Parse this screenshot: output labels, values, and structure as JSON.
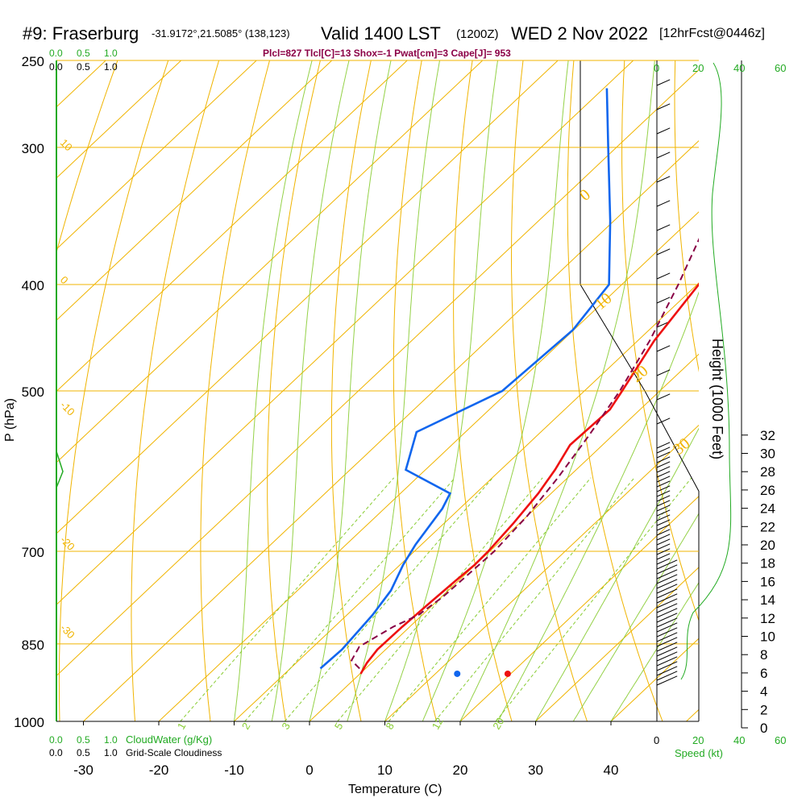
{
  "header": {
    "station": "#9: Fraserburg",
    "coords": "-31.9172°,21.5085° (138,123)",
    "valid": "Valid 1400 LST",
    "utc": "(1200Z)",
    "date": "WED 2 Nov 2022",
    "forecast": "[12hrFcst@0446z]",
    "parameters": "Plcl=827 Tlcl[C]=13 Shox=-1 Pwat[cm]=3 Cape[J]= 953"
  },
  "top_scales": {
    "cloudwater_ticks": [
      "0.0",
      "0.5",
      "1.0"
    ],
    "cloudiness_ticks": [
      "0.0",
      "0.5",
      "1.0"
    ],
    "speed_ticks": [
      "0",
      "20",
      "40",
      "60"
    ]
  },
  "bottom_scales": {
    "cloudwater_ticks": [
      "0.0",
      "0.5",
      "1.0"
    ],
    "cloudwater_label": "CloudWater (g/Kg)",
    "cloudiness_ticks": [
      "0.0",
      "0.5",
      "1.0"
    ],
    "cloudiness_label": "Grid-Scale Cloudiness",
    "speed_ticks": [
      "0",
      "20",
      "40",
      "60"
    ],
    "speed_label": "Speed (kt)"
  },
  "colors": {
    "temperature": "#ee1111",
    "dewpoint": "#1166ee",
    "parcel": "#880044",
    "isobar_isotherm": "#f0b400",
    "mixing_ratio": "#88cc33",
    "cloud": "#22aa22"
  },
  "chart_data": {
    "type": "line",
    "title": "",
    "xlabel": "Temperature (C)",
    "ylabel": "P (hPa)",
    "y2label": "Height (1000 Feet)",
    "x_ticks": [
      "-30",
      "-20",
      "-10",
      "0",
      "10",
      "20",
      "30",
      "40"
    ],
    "xlim": [
      -34,
      36
    ],
    "p_ticks": [
      "250",
      "300",
      "400",
      "500",
      "700",
      "850",
      "1000"
    ],
    "p_values": [
      250,
      300,
      400,
      500,
      700,
      850,
      1000
    ],
    "ylim": [
      1000,
      250
    ],
    "y_scale": "log",
    "height_ticks": [
      "0",
      "2",
      "4",
      "6",
      "8",
      "10",
      "12",
      "14",
      "16",
      "18",
      "20",
      "22",
      "24",
      "26",
      "28",
      "30",
      "32"
    ],
    "skewed_isotherm_labels": [
      "10",
      "0",
      "-10",
      "-20",
      "-30"
    ],
    "dry_adiabat_labels": [
      "0",
      "10",
      "20",
      "30"
    ],
    "mixing_ratio_labels": [
      "1",
      "2",
      "3",
      "5",
      "8",
      "12",
      "20"
    ],
    "series": [
      {
        "key": "temperature",
        "points": [
          [
            0.1,
            905
          ],
          [
            -0.6,
            885
          ],
          [
            -1.1,
            860
          ],
          [
            -1.0,
            820
          ],
          [
            -0.7,
            780
          ],
          [
            -0.4,
            745
          ],
          [
            -0.1,
            720
          ],
          [
            -0.2,
            700
          ],
          [
            -0.8,
            660
          ],
          [
            -1.7,
            620
          ],
          [
            -2.8,
            590
          ],
          [
            -4.3,
            560
          ],
          [
            -4.0,
            520
          ],
          [
            -5.0,
            500
          ],
          [
            -7.8,
            450
          ],
          [
            -9.8,
            400
          ],
          [
            -12.9,
            350
          ],
          [
            -18.3,
            300
          ],
          [
            -22.6,
            265
          ]
        ]
      },
      {
        "key": "dewpoint",
        "points": [
          [
            -6.0,
            895
          ],
          [
            -5.8,
            860
          ],
          [
            -6.6,
            800
          ],
          [
            -7.6,
            760
          ],
          [
            -9.6,
            720
          ],
          [
            -10.8,
            690
          ],
          [
            -12.3,
            640
          ],
          [
            -13.4,
            620
          ],
          [
            -22.6,
            590
          ],
          [
            -26.5,
            545
          ],
          [
            -20.9,
            500
          ],
          [
            -20.1,
            440
          ],
          [
            -21.7,
            400
          ],
          [
            -30.5,
            350
          ],
          [
            -41.1,
            300
          ],
          [
            -49.6,
            265
          ]
        ]
      },
      {
        "key": "parcel",
        "points": [
          [
            -0.8,
            895
          ],
          [
            -3.0,
            880
          ],
          [
            -3.9,
            855
          ],
          [
            -2.2,
            820
          ],
          [
            -0.5,
            800
          ],
          [
            0.2,
            770
          ],
          [
            0.6,
            700
          ],
          [
            0.0,
            650
          ],
          [
            -1.3,
            600
          ],
          [
            -3.1,
            550
          ],
          [
            -5.3,
            500
          ],
          [
            -8.4,
            450
          ],
          [
            -12.5,
            400
          ],
          [
            -17.6,
            350
          ],
          [
            -23.8,
            300
          ],
          [
            -29.5,
            262
          ]
        ]
      }
    ],
    "surface_markers": [
      {
        "key": "temperature",
        "x": 26.3,
        "p": 905
      },
      {
        "key": "dewpoint",
        "x": 19.6,
        "p": 905
      }
    ]
  }
}
